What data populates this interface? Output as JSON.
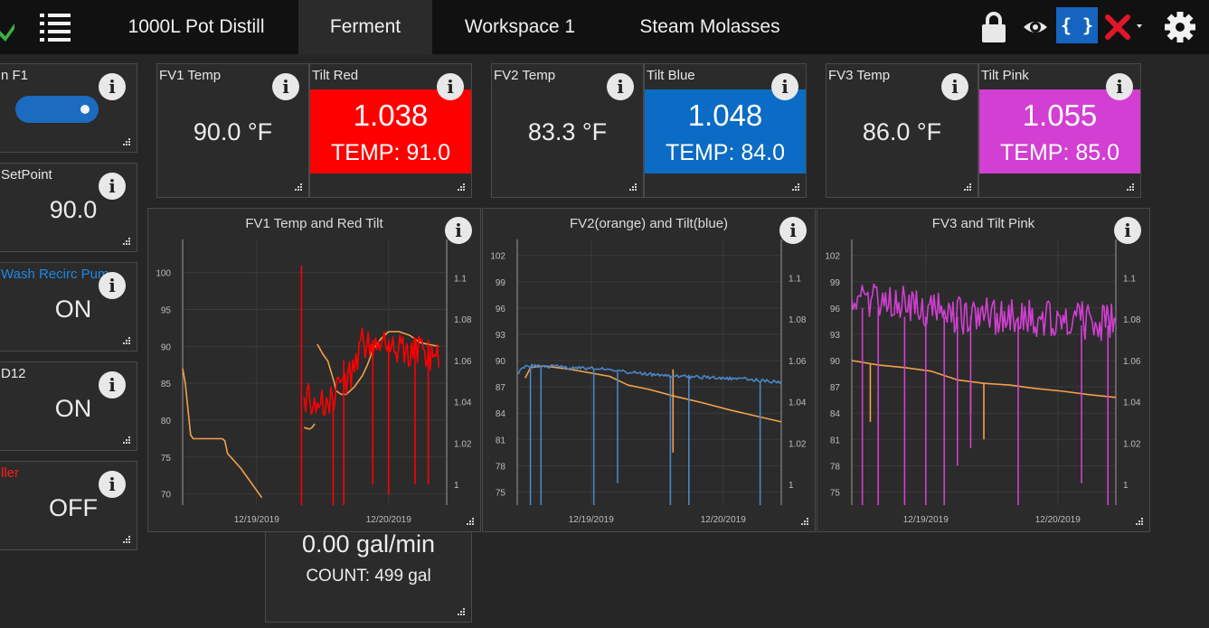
{
  "toolbar": {
    "tabs": [
      "1000L Pot Distill",
      "Ferment",
      "Workspace 1",
      "Steam Molasses"
    ],
    "active_tab": "Ferment",
    "icons": [
      "menu-icon",
      "lock-icon",
      "eye-icon",
      "code-icon",
      "close-icon",
      "settings-icon"
    ],
    "code_label": "{ }",
    "accent": "#1565c0",
    "close_color": "#e0162b"
  },
  "left_tiles": [
    {
      "title": "n F1",
      "kind": "toggle",
      "toggle_color": "#1b6bbf"
    },
    {
      "title": "SetPoint",
      "value": "90.0",
      "title_color": "#e6e6e6"
    },
    {
      "title": "Wash Recirc Pum",
      "value": "ON",
      "title_color": "#1e88e5"
    },
    {
      "title": "D12",
      "value": "ON",
      "title_color": "#e6e6e6"
    },
    {
      "title": "ller",
      "value": "OFF",
      "title_color": "#ff1a1a"
    }
  ],
  "temp_tiles": [
    {
      "title": "FV1 Temp",
      "value": "90.0 °F"
    },
    {
      "title": "FV2 Temp",
      "value": "83.3 °F"
    },
    {
      "title": "FV3 Temp",
      "value": "86.0 °F"
    }
  ],
  "tilt_tiles": [
    {
      "title": "Tilt Red",
      "gravity": "1.038",
      "temp": "TEMP: 91.0",
      "color": "#ff0000"
    },
    {
      "title": "Tilt Blue",
      "gravity": "1.048",
      "temp": "TEMP: 84.0",
      "color": "#0a6cc4"
    },
    {
      "title": "Tilt Pink",
      "gravity": "1.055",
      "temp": "TEMP: 85.0",
      "color": "#d23fd2"
    }
  ],
  "flow_tile": {
    "rate": "0.00  gal/min",
    "count": "COUNT: 499 gal"
  },
  "chart_data": [
    {
      "type": "line",
      "title": "FV1 Temp and Red Tilt",
      "x_ticks": [
        "12/19/2019",
        "12/20/2019"
      ],
      "y_left_ticks": [
        "100",
        "95",
        "90",
        "85",
        "80",
        "75",
        "70"
      ],
      "ylim_left": [
        68.5,
        103.5
      ],
      "y_right_ticks": [
        "1.1",
        "1.08",
        "1.06",
        "1.04",
        "1.02",
        "1"
      ],
      "ylim_right": [
        0.99,
        1.115
      ],
      "grid": true,
      "series": [
        {
          "axis": "left",
          "color": "#f4a04a",
          "points": [
            [
              0,
              87
            ],
            [
              0.01,
              85
            ],
            [
              0.03,
              78
            ],
            [
              0.04,
              77.5
            ],
            [
              0.08,
              77.5
            ],
            [
              0.15,
              77.5
            ],
            [
              0.16,
              77.2
            ],
            [
              0.17,
              75.5
            ],
            [
              0.22,
              73.5
            ],
            [
              0.3,
              69.5
            ],
            [
              0.45,
              null
            ],
            [
              0.46,
              79
            ],
            [
              0.48,
              78.8
            ],
            [
              0.49,
              79
            ],
            [
              0.5,
              79.5
            ],
            [
              0.505,
              null
            ],
            [
              0.51,
              90.3
            ],
            [
              0.53,
              89
            ],
            [
              0.55,
              88
            ],
            [
              0.575,
              85
            ],
            [
              0.58,
              84
            ],
            [
              0.6,
              83.5
            ],
            [
              0.62,
              83.5
            ],
            [
              0.65,
              84.5
            ],
            [
              0.68,
              86
            ],
            [
              0.7,
              87.5
            ],
            [
              0.72,
              89.5
            ],
            [
              0.75,
              91
            ],
            [
              0.78,
              92
            ],
            [
              0.82,
              92
            ],
            [
              0.86,
              91.5
            ],
            [
              0.9,
              90.5
            ],
            [
              0.94,
              90.2
            ],
            [
              0.97,
              90
            ]
          ]
        },
        {
          "axis": "right",
          "color": "#ff0000",
          "noise": 0.008,
          "seed": 1,
          "points": [
            [
              0.46,
              1.042
            ],
            [
              0.55,
              1.041
            ],
            [
              0.59,
              1.044
            ],
            [
              0.62,
              1.05
            ],
            [
              0.65,
              1.058
            ],
            [
              0.68,
              1.068
            ],
            [
              0.72,
              1.068
            ],
            [
              0.78,
              1.065
            ],
            [
              0.85,
              1.065
            ],
            [
              0.9,
              1.064
            ],
            [
              0.97,
              1.06
            ]
          ],
          "spikes": [
            [
              0.45,
              0.99,
              1.106
            ],
            [
              0.57,
              0.99,
              1.04
            ],
            [
              0.61,
              0.99,
              1.06
            ],
            [
              0.72,
              1.0,
              1.07
            ],
            [
              0.78,
              0.995,
              1.07
            ],
            [
              0.88,
              1.0,
              1.07
            ],
            [
              0.93,
              1.0,
              1.07
            ]
          ]
        }
      ]
    },
    {
      "type": "line",
      "title": "FV2(orange) and Tilt(blue)",
      "x_ticks": [
        "12/19/2019",
        "12/20/2019"
      ],
      "y_left_ticks": [
        "102",
        "99",
        "96",
        "93",
        "90",
        "87",
        "84",
        "81",
        "78",
        "75"
      ],
      "ylim_left": [
        73.5,
        103
      ],
      "y_right_ticks": [
        "1.1",
        "1.08",
        "1.06",
        "1.04",
        "1.02",
        "1"
      ],
      "ylim_right": [
        0.99,
        1.115
      ],
      "grid": true,
      "series": [
        {
          "axis": "left",
          "color": "#f4a04a",
          "points": [
            [
              0.03,
              88
            ],
            [
              0.05,
              89.2
            ],
            [
              0.1,
              89.4
            ],
            [
              0.2,
              89
            ],
            [
              0.35,
              88.2
            ],
            [
              0.42,
              87.2
            ],
            [
              0.5,
              86.7
            ],
            [
              0.6,
              85.9
            ],
            [
              0.7,
              85.2
            ],
            [
              0.8,
              84.4
            ],
            [
              0.9,
              83.7
            ],
            [
              1.0,
              83
            ]
          ],
          "spikes": [
            [
              0.59,
              89.0,
              79.5
            ]
          ]
        },
        {
          "axis": "left",
          "color": "#4a86c8",
          "noise": 0.2,
          "seed": 2,
          "points": [
            [
              0.0,
              88.5
            ],
            [
              0.02,
              89.2
            ],
            [
              0.05,
              89.4
            ],
            [
              0.15,
              89.3
            ],
            [
              0.3,
              89.1
            ],
            [
              0.45,
              88.6
            ],
            [
              0.55,
              88.3
            ],
            [
              0.7,
              88.1
            ],
            [
              0.85,
              87.9
            ],
            [
              1.0,
              87.5
            ]
          ],
          "spikes": [
            [
              0.05,
              89.3,
              73.5
            ],
            [
              0.09,
              89.3,
              73.5
            ],
            [
              0.29,
              88.9,
              73.5
            ],
            [
              0.38,
              88.7,
              76
            ],
            [
              0.58,
              88.3,
              73.5
            ],
            [
              0.65,
              88.3,
              73.5
            ],
            [
              0.92,
              87.6,
              73.5
            ]
          ]
        }
      ]
    },
    {
      "type": "line",
      "title": "FV3 and Tilt Pink",
      "x_ticks": [
        "12/19/2019",
        "12/20/2019"
      ],
      "y_left_ticks": [
        "102",
        "99",
        "96",
        "93",
        "90",
        "87",
        "84",
        "81",
        "78",
        "75"
      ],
      "ylim_left": [
        73.5,
        103
      ],
      "y_right_ticks": [
        "1.1",
        "1.08",
        "1.06",
        "1.04",
        "1.02",
        "1"
      ],
      "ylim_right": [
        0.99,
        1.115
      ],
      "grid": true,
      "series": [
        {
          "axis": "left",
          "color": "#f4a04a",
          "points": [
            [
              0.0,
              90
            ],
            [
              0.1,
              89.5
            ],
            [
              0.2,
              89.2
            ],
            [
              0.3,
              88.8
            ],
            [
              0.4,
              87.8
            ],
            [
              0.5,
              87.4
            ],
            [
              0.6,
              87.2
            ],
            [
              0.7,
              86.8
            ],
            [
              0.8,
              86.5
            ],
            [
              0.9,
              86.1
            ],
            [
              1.0,
              85.8
            ]
          ],
          "spikes": [
            [
              0.07,
              89.6,
              83
            ],
            [
              0.45,
              87.6,
              84
            ],
            [
              0.5,
              87.4,
              81
            ]
          ]
        },
        {
          "axis": "left",
          "color": "#d23fd2",
          "noise": 2.2,
          "seed": 3,
          "points": [
            [
              0.0,
              97
            ],
            [
              0.1,
              97
            ],
            [
              0.2,
              96.3
            ],
            [
              0.3,
              95.8
            ],
            [
              0.4,
              95.3
            ],
            [
              0.5,
              95
            ],
            [
              0.6,
              95
            ],
            [
              0.7,
              94.7
            ],
            [
              0.8,
              94.8
            ],
            [
              0.9,
              94.5
            ],
            [
              1.0,
              94.2
            ]
          ],
          "spikes": [
            [
              0.04,
              96,
              73.5
            ],
            [
              0.1,
              96,
              73.5
            ],
            [
              0.2,
              95,
              73.5
            ],
            [
              0.28,
              95,
              73.5
            ],
            [
              0.35,
              95,
              73.5
            ],
            [
              0.4,
              95,
              78
            ],
            [
              0.45,
              95,
              80
            ],
            [
              0.63,
              95,
              73.5
            ],
            [
              0.87,
              94,
              76
            ],
            [
              0.97,
              94,
              73.5
            ]
          ]
        }
      ]
    }
  ]
}
